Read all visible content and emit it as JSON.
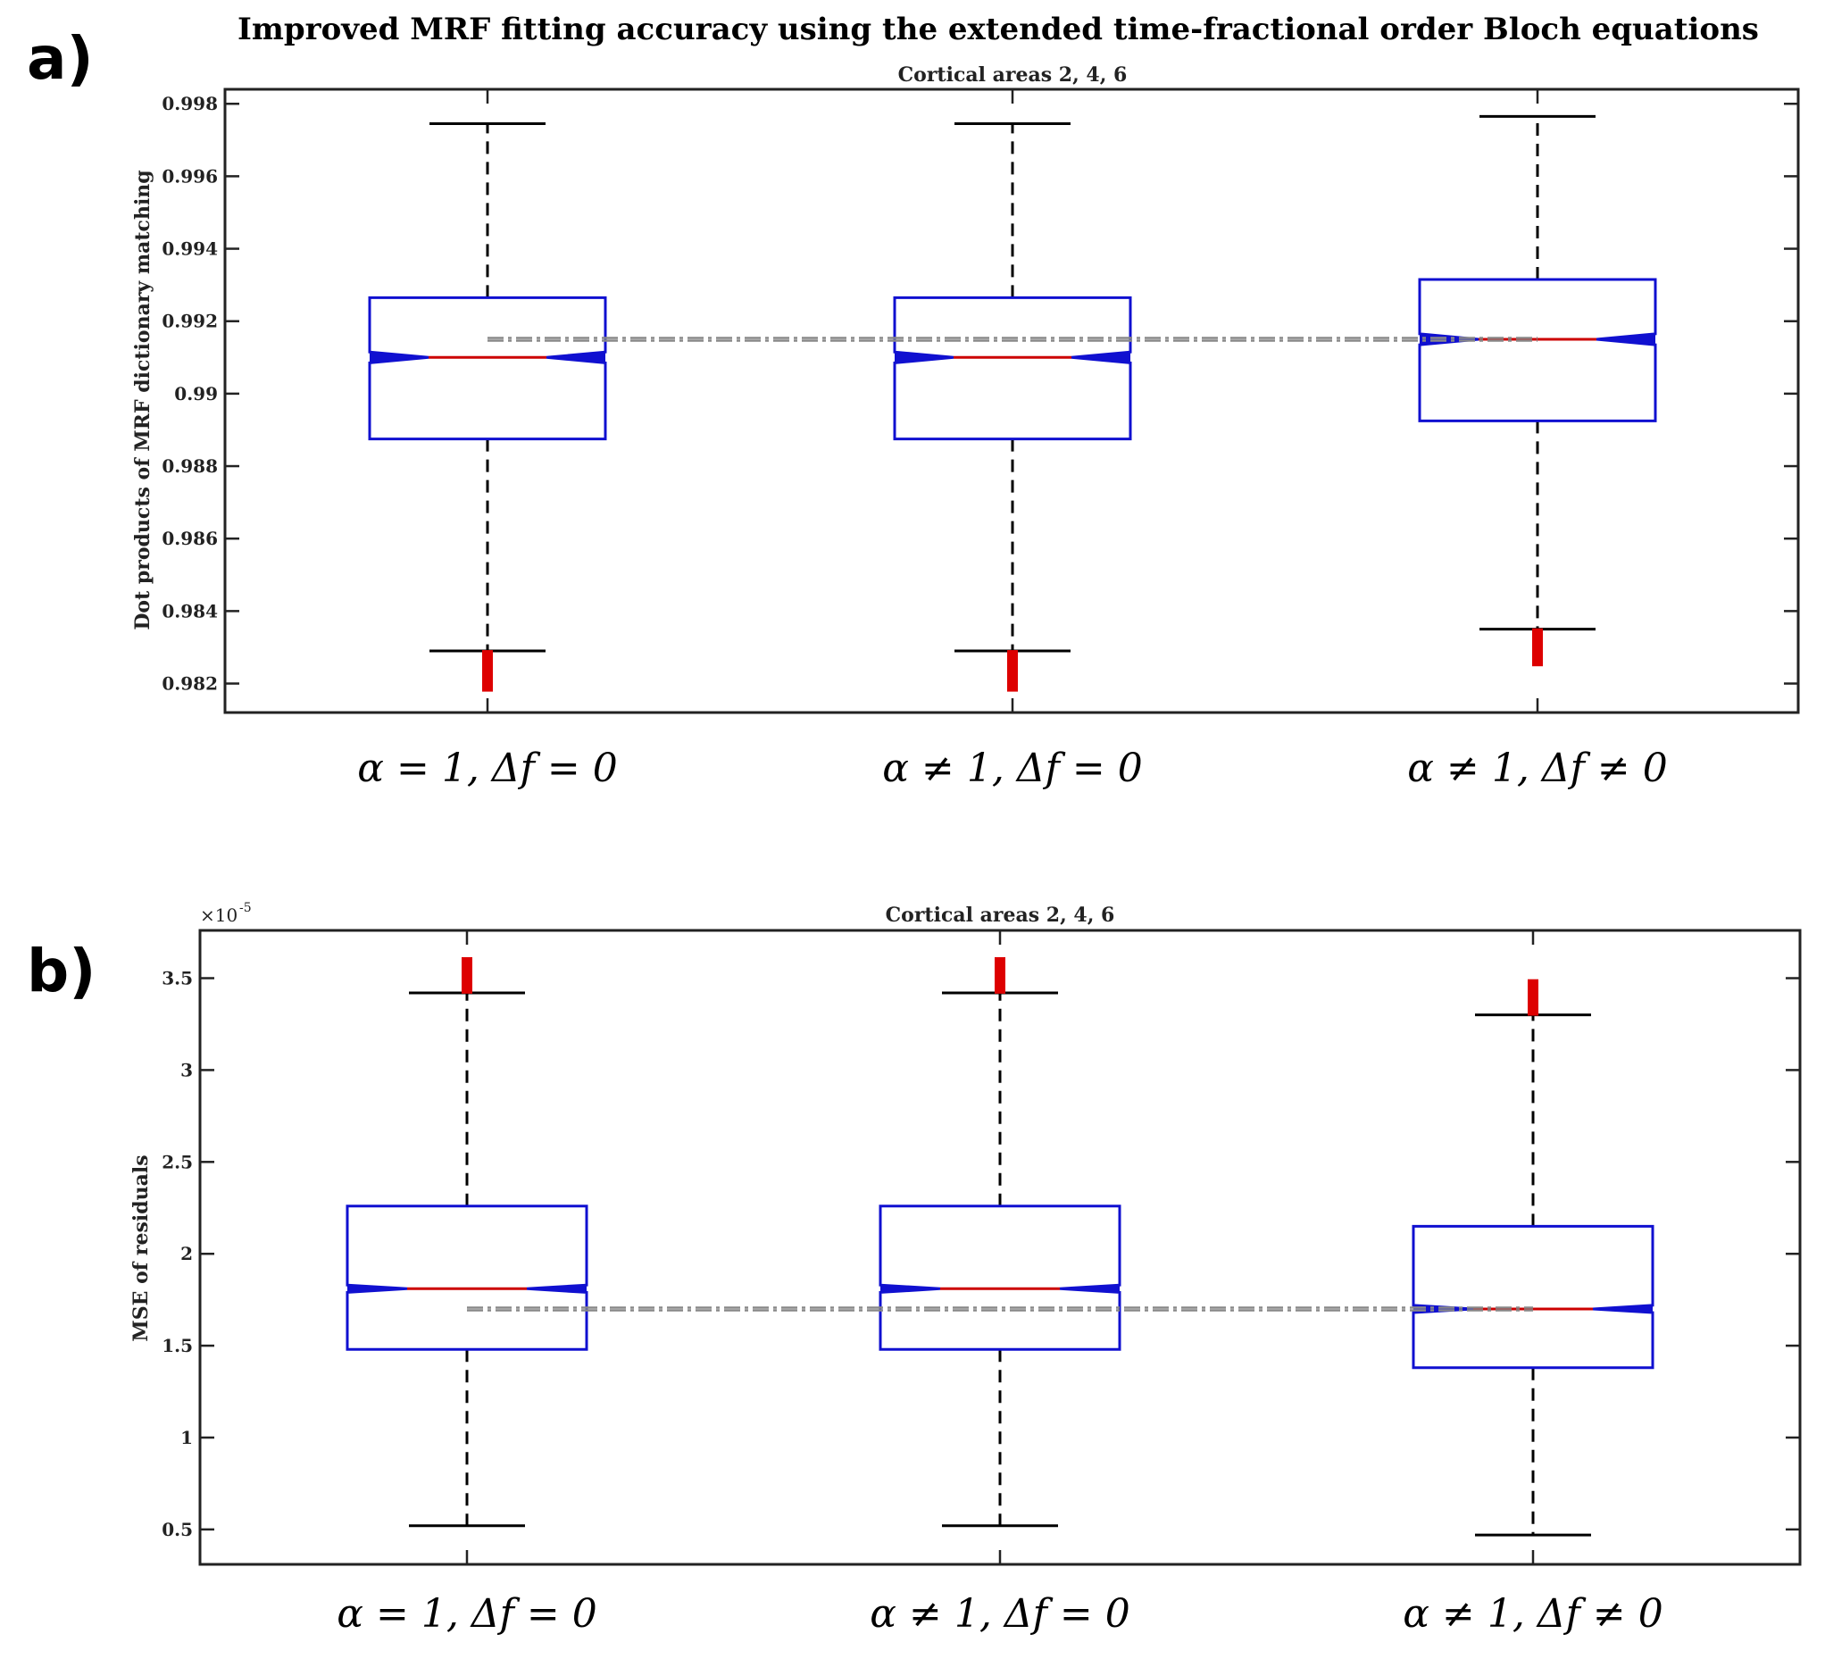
{
  "title": "Improved MRF fitting accuracy using the extended time-fractional order Bloch equations",
  "chart_data": [
    {
      "panel_label": "a)",
      "type": "box",
      "title": "Cortical areas 2, 4, 6",
      "ylabel": "Dot products of MRF dictionary matching",
      "xlabel": "",
      "ylim": [
        0.9812,
        0.9984
      ],
      "yticks": [
        0.982,
        0.984,
        0.986,
        0.988,
        0.99,
        0.992,
        0.994,
        0.996,
        0.998
      ],
      "ytick_labels": [
        "0.982",
        "0.984",
        "0.986",
        "0.988",
        "0.99",
        "0.992",
        "0.994",
        "0.996",
        "0.998"
      ],
      "exponent_label": "",
      "categories": [
        "α = 1, Δf = 0",
        "α ≠ 1, Δf = 0",
        "α ≠ 1, Δf ≠ 0"
      ],
      "boxes": [
        {
          "whisker_low": 0.9829,
          "q1": 0.98875,
          "median": 0.991,
          "q3": 0.99265,
          "whisker_high": 0.99745,
          "notch_low": 0.99085,
          "notch_high": 0.99115,
          "outliers": [
            0.9819,
            0.9821,
            0.9823,
            0.9825,
            0.9827,
            0.9828
          ]
        },
        {
          "whisker_low": 0.9829,
          "q1": 0.98875,
          "median": 0.991,
          "q3": 0.99265,
          "whisker_high": 0.99745,
          "notch_low": 0.99085,
          "notch_high": 0.99115,
          "outliers": [
            0.9819,
            0.9821,
            0.9823,
            0.9825,
            0.9827,
            0.9828
          ]
        },
        {
          "whisker_low": 0.9835,
          "q1": 0.98925,
          "median": 0.9915,
          "q3": 0.99315,
          "whisker_high": 0.99765,
          "notch_low": 0.99135,
          "notch_high": 0.99165,
          "outliers": [
            0.9826,
            0.9828,
            0.983,
            0.9832,
            0.9834
          ]
        }
      ],
      "reference_line": 0.9915,
      "colors": {
        "box": "#1010d0",
        "median": "#cc0000",
        "outlier": "#dd0000",
        "whisker": "#000000",
        "reference": "#888888"
      }
    },
    {
      "panel_label": "b)",
      "type": "box",
      "title": "Cortical areas 2, 4, 6",
      "ylabel": "MSE of residuals",
      "xlabel": "",
      "ylim": [
        0.31,
        3.76
      ],
      "yticks": [
        0.5,
        1,
        1.5,
        2,
        2.5,
        3,
        3.5
      ],
      "ytick_labels": [
        "0.5",
        "1",
        "1.5",
        "2",
        "2.5",
        "3",
        "3.5"
      ],
      "exponent_label": "×10",
      "exponent_power": "-5",
      "categories": [
        "α = 1, Δf = 0",
        "α ≠ 1, Δf = 0",
        "α ≠ 1, Δf ≠ 0"
      ],
      "boxes": [
        {
          "whisker_low": 0.52,
          "q1": 1.48,
          "median": 1.81,
          "q3": 2.26,
          "whisker_high": 3.42,
          "notch_low": 1.79,
          "notch_high": 1.83,
          "outliers": [
            3.44,
            3.47,
            3.5,
            3.53,
            3.56,
            3.59
          ]
        },
        {
          "whisker_low": 0.52,
          "q1": 1.48,
          "median": 1.81,
          "q3": 2.26,
          "whisker_high": 3.42,
          "notch_low": 1.79,
          "notch_high": 1.83,
          "outliers": [
            3.44,
            3.47,
            3.5,
            3.53,
            3.56,
            3.59
          ]
        },
        {
          "whisker_low": 0.47,
          "q1": 1.38,
          "median": 1.7,
          "q3": 2.15,
          "whisker_high": 3.3,
          "notch_low": 1.68,
          "notch_high": 1.72,
          "outliers": [
            3.32,
            3.35,
            3.38,
            3.41,
            3.44,
            3.47
          ]
        }
      ],
      "reference_line": 1.7,
      "colors": {
        "box": "#1010d0",
        "median": "#cc0000",
        "outlier": "#dd0000",
        "whisker": "#000000",
        "reference": "#888888"
      }
    }
  ]
}
